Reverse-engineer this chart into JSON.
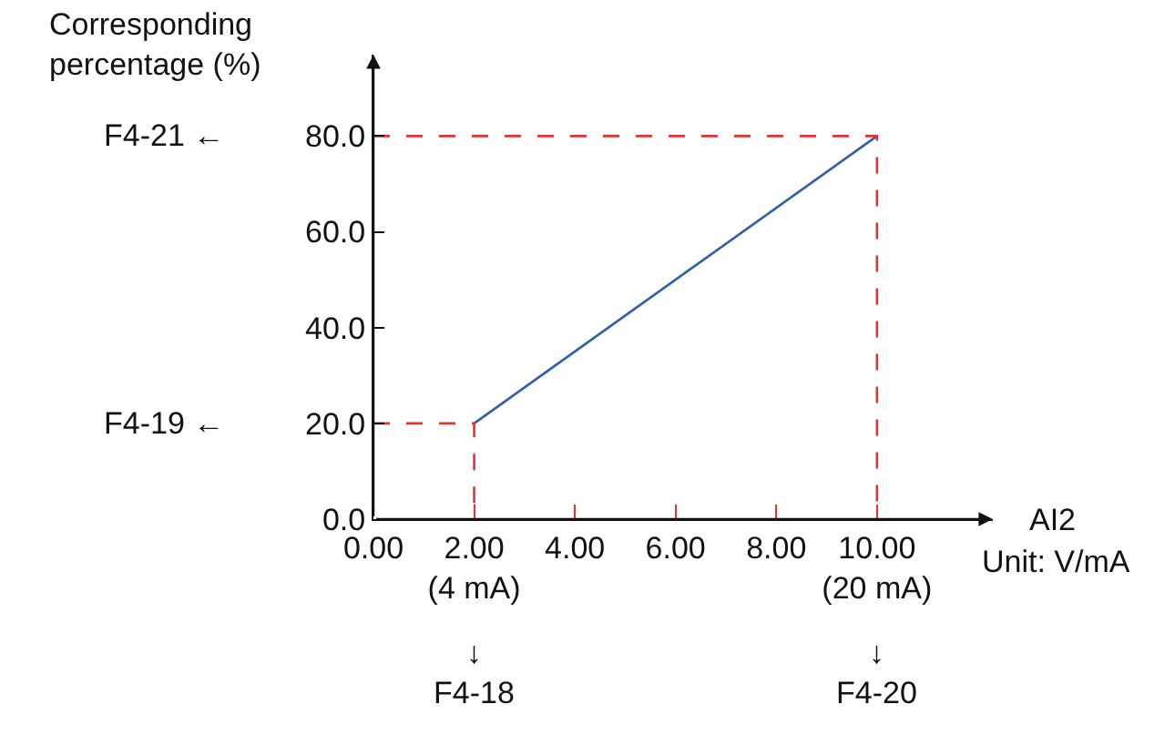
{
  "chart_data": {
    "type": "line",
    "xlabel": "AI2",
    "ylabel": "Corresponding percentage (%)",
    "series": [
      {
        "color": "#2e5fae",
        "x": [
          2,
          10
        ],
        "values": [
          20,
          80
        ],
        "line_style": "solid"
      },
      {
        "color": "#e8312f",
        "x": [
          0,
          2,
          2
        ],
        "values": [
          20,
          20,
          0
        ],
        "line_style": "dashed"
      },
      {
        "color": "#e8312f",
        "x": [
          0,
          10,
          10
        ],
        "values": [
          80,
          80,
          0
        ],
        "line_style": "dashed"
      }
    ],
    "xlim": [
      0,
      12.3
    ],
    "ylim": [
      0,
      97
    ],
    "xticks": [
      {
        "value": 0,
        "label": "0.00"
      },
      {
        "value": 2,
        "label": "2.00\n(4 mA)"
      },
      {
        "value": 4,
        "label": "4.00"
      },
      {
        "value": 6,
        "label": "6.00"
      },
      {
        "value": 8,
        "label": "8.00"
      },
      {
        "value": 10,
        "label": "10.00\n(20 mA)"
      }
    ],
    "yticks": [
      {
        "value": 0,
        "label": "0.0"
      },
      {
        "value": 20,
        "label": "20.0"
      },
      {
        "value": 40,
        "label": "40.0"
      },
      {
        "value": 60,
        "label": "60.0"
      },
      {
        "value": 80,
        "label": "80.0"
      }
    ],
    "annotations": [
      "F4-21 ←",
      "F4-19 ←",
      "↓\nF4-18",
      "↓\nF4-20",
      "Unit: V/mA"
    ],
    "legend": false,
    "marker": "none"
  }
}
